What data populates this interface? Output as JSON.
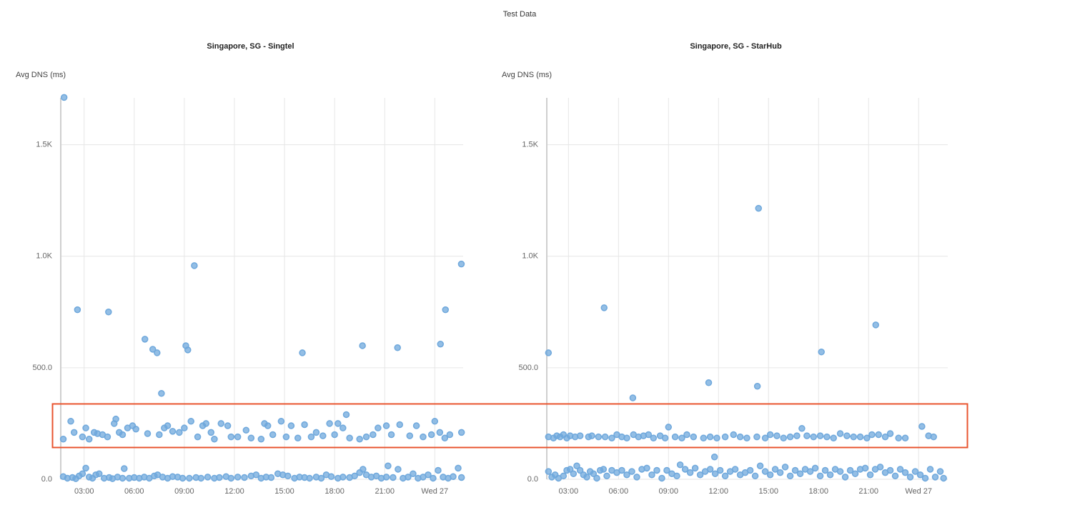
{
  "title": "Test Data",
  "chart_data": [
    {
      "type": "scatter",
      "title": "Singapore, SG - Singtel",
      "y_label": "Avg DNS (ms)",
      "color": "#6fa8dc",
      "grid": true,
      "xlim": [
        1.6,
        25.7
      ],
      "ylim": [
        0,
        1710
      ],
      "xticks": [
        {
          "value": 3,
          "label": "03:00"
        },
        {
          "value": 6,
          "label": "06:00"
        },
        {
          "value": 9,
          "label": "09:00"
        },
        {
          "value": 12,
          "label": "12:00"
        },
        {
          "value": 15,
          "label": "15:00"
        },
        {
          "value": 18,
          "label": "18:00"
        },
        {
          "value": 21,
          "label": "21:00"
        },
        {
          "value": 24,
          "label": "Wed 27"
        }
      ],
      "yticks": [
        {
          "value": 0,
          "label": "0.0"
        },
        {
          "value": 500,
          "label": "500.0"
        },
        {
          "value": 1000,
          "label": "1.0K"
        },
        {
          "value": 1500,
          "label": "1.5K"
        }
      ],
      "x": [
        1.8,
        2.6,
        4.46,
        6.64,
        7.11,
        7.37,
        7.63,
        9.09,
        9.21,
        9.6,
        16.07,
        19.67,
        21.77,
        24.34,
        24.64,
        25.59,
        1.75,
        2.2,
        2.4,
        2.9,
        3.1,
        3.3,
        3.6,
        3.8,
        4.1,
        4.4,
        4.8,
        4.9,
        5.1,
        5.3,
        5.6,
        5.9,
        6.1,
        6.8,
        7.5,
        7.8,
        8.0,
        8.3,
        8.7,
        9.0,
        9.4,
        9.8,
        10.1,
        10.3,
        10.6,
        10.8,
        11.2,
        11.6,
        11.8,
        12.2,
        12.7,
        13.0,
        13.6,
        13.8,
        14.0,
        14.3,
        14.8,
        15.1,
        15.4,
        15.8,
        16.2,
        16.6,
        16.9,
        17.3,
        17.7,
        18.0,
        18.2,
        18.5,
        18.7,
        18.9,
        19.5,
        19.9,
        20.3,
        20.6,
        21.1,
        21.4,
        21.9,
        22.5,
        22.9,
        23.3,
        23.8,
        24.0,
        24.3,
        24.6,
        24.9,
        25.6,
        1.75,
        2.0,
        2.3,
        2.5,
        2.7,
        2.9,
        3.1,
        3.3,
        3.5,
        3.7,
        3.9,
        4.2,
        4.5,
        4.7,
        5.0,
        5.3,
        5.4,
        5.7,
        6.0,
        6.3,
        6.6,
        6.9,
        7.2,
        7.4,
        7.7,
        8.0,
        8.3,
        8.6,
        8.9,
        9.3,
        9.7,
        10.0,
        10.4,
        10.8,
        11.1,
        11.5,
        11.8,
        12.2,
        12.6,
        13.0,
        13.3,
        13.6,
        13.9,
        14.2,
        14.6,
        14.9,
        15.2,
        15.6,
        15.9,
        16.2,
        16.5,
        16.9,
        17.2,
        17.5,
        17.8,
        18.2,
        18.5,
        18.9,
        19.2,
        19.5,
        19.7,
        19.9,
        20.2,
        20.5,
        20.8,
        21.1,
        21.2,
        21.5,
        21.8,
        22.1,
        22.4,
        22.7,
        23.0,
        23.3,
        23.6,
        23.9,
        24.2,
        24.5,
        24.8,
        25.1,
        25.4,
        25.6
      ],
      "values": [
        1712,
        760,
        750,
        628,
        583,
        567,
        385,
        599,
        580,
        958,
        567,
        599,
        590,
        606,
        760,
        965,
        180,
        260,
        210,
        190,
        230,
        180,
        210,
        205,
        200,
        190,
        250,
        270,
        210,
        200,
        230,
        240,
        225,
        205,
        200,
        230,
        240,
        215,
        210,
        230,
        260,
        190,
        240,
        250,
        210,
        180,
        250,
        240,
        190,
        190,
        220,
        185,
        180,
        250,
        240,
        200,
        260,
        190,
        240,
        185,
        245,
        190,
        210,
        195,
        250,
        200,
        250,
        230,
        290,
        185,
        180,
        190,
        200,
        230,
        240,
        200,
        245,
        195,
        240,
        190,
        200,
        260,
        210,
        185,
        200,
        210,
        12,
        5,
        8,
        3,
        15,
        25,
        50,
        10,
        5,
        20,
        25,
        5,
        8,
        3,
        10,
        5,
        48,
        5,
        8,
        5,
        10,
        5,
        15,
        20,
        10,
        5,
        12,
        10,
        5,
        5,
        8,
        5,
        10,
        5,
        8,
        12,
        5,
        10,
        8,
        15,
        20,
        5,
        10,
        8,
        25,
        20,
        15,
        5,
        10,
        8,
        5,
        10,
        5,
        20,
        12,
        5,
        10,
        8,
        15,
        30,
        45,
        20,
        10,
        15,
        5,
        10,
        60,
        8,
        45,
        5,
        10,
        25,
        5,
        10,
        20,
        5,
        40,
        10,
        5,
        12,
        50,
        8
      ]
    },
    {
      "type": "scatter",
      "title": "Singapore, SG - StarHub",
      "y_label": "Avg DNS (ms)",
      "color": "#6fa8dc",
      "grid": true,
      "xlim": [
        1.7,
        25.75
      ],
      "ylim": [
        0,
        1710
      ],
      "xticks": [
        {
          "value": 3,
          "label": "03:00"
        },
        {
          "value": 6,
          "label": "06:00"
        },
        {
          "value": 9,
          "label": "09:00"
        },
        {
          "value": 12,
          "label": "12:00"
        },
        {
          "value": 15,
          "label": "15:00"
        },
        {
          "value": 18,
          "label": "18:00"
        },
        {
          "value": 21,
          "label": "21:00"
        },
        {
          "value": 24,
          "label": "Wed 27"
        }
      ],
      "yticks": [
        {
          "value": 0,
          "label": "0.0"
        },
        {
          "value": 500,
          "label": "500.0"
        },
        {
          "value": 1000,
          "label": "1.0K"
        },
        {
          "value": 1500,
          "label": "1.5K"
        }
      ],
      "x": [
        1.8,
        5.14,
        6.86,
        11.41,
        14.33,
        14.4,
        18.17,
        21.43,
        11.76,
        1.8,
        2.1,
        2.3,
        2.5,
        2.7,
        2.9,
        3.1,
        3.4,
        3.7,
        4.2,
        4.4,
        4.8,
        5.2,
        5.6,
        5.9,
        6.2,
        6.5,
        6.9,
        7.2,
        7.5,
        7.8,
        8.1,
        8.5,
        8.8,
        9.0,
        9.4,
        9.8,
        10.1,
        10.5,
        11.1,
        11.5,
        11.9,
        12.4,
        12.9,
        13.3,
        13.7,
        14.3,
        14.8,
        15.1,
        15.5,
        15.9,
        16.3,
        16.7,
        17.0,
        17.3,
        17.7,
        18.1,
        18.5,
        18.9,
        19.3,
        19.7,
        20.1,
        20.5,
        20.9,
        21.2,
        21.6,
        22.0,
        22.3,
        22.8,
        23.2,
        24.2,
        24.6,
        24.9,
        1.8,
        2.0,
        2.2,
        2.4,
        2.7,
        2.9,
        3.1,
        3.3,
        3.5,
        3.7,
        3.9,
        4.1,
        4.3,
        4.5,
        4.7,
        4.9,
        5.1,
        5.3,
        5.6,
        5.9,
        6.2,
        6.5,
        6.8,
        7.1,
        7.4,
        7.7,
        8.0,
        8.3,
        8.6,
        8.9,
        9.2,
        9.5,
        9.7,
        10.0,
        10.3,
        10.6,
        10.9,
        11.2,
        11.5,
        11.8,
        12.1,
        12.4,
        12.7,
        13.0,
        13.3,
        13.6,
        13.9,
        14.2,
        14.5,
        14.8,
        15.1,
        15.4,
        15.7,
        16.0,
        16.3,
        16.6,
        16.9,
        17.2,
        17.5,
        17.8,
        18.1,
        18.4,
        18.7,
        19.0,
        19.3,
        19.6,
        19.9,
        20.2,
        20.5,
        20.8,
        21.1,
        21.4,
        21.7,
        22.0,
        22.3,
        22.6,
        22.9,
        23.2,
        23.5,
        23.8,
        24.1,
        24.4,
        24.7,
        25.0,
        25.3,
        25.5
      ],
      "values": [
        567,
        769,
        365,
        433,
        417,
        1215,
        571,
        692,
        100,
        190,
        185,
        195,
        190,
        200,
        185,
        195,
        190,
        195,
        190,
        195,
        190,
        190,
        185,
        200,
        190,
        185,
        200,
        190,
        195,
        200,
        185,
        195,
        185,
        234,
        190,
        185,
        200,
        190,
        185,
        190,
        185,
        190,
        200,
        190,
        185,
        190,
        185,
        200,
        195,
        185,
        190,
        195,
        228,
        195,
        190,
        195,
        190,
        185,
        205,
        195,
        190,
        190,
        185,
        200,
        200,
        190,
        205,
        185,
        185,
        237,
        195,
        190,
        35,
        10,
        20,
        5,
        15,
        40,
        45,
        25,
        60,
        40,
        20,
        10,
        35,
        25,
        5,
        40,
        45,
        15,
        40,
        30,
        40,
        20,
        35,
        10,
        45,
        50,
        20,
        40,
        5,
        40,
        25,
        15,
        65,
        45,
        30,
        50,
        20,
        35,
        45,
        25,
        40,
        15,
        35,
        45,
        20,
        30,
        40,
        15,
        60,
        35,
        20,
        45,
        30,
        55,
        15,
        40,
        25,
        45,
        35,
        50,
        15,
        40,
        20,
        45,
        35,
        10,
        40,
        25,
        45,
        50,
        20,
        45,
        55,
        30,
        40,
        15,
        45,
        30,
        10,
        35,
        20,
        5,
        45,
        10,
        35,
        5
      ]
    }
  ]
}
